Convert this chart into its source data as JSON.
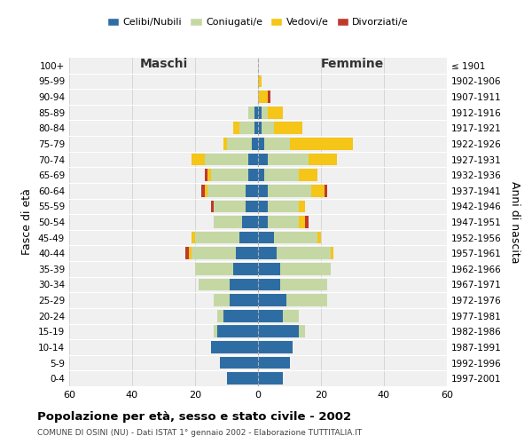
{
  "age_groups": [
    "100+",
    "95-99",
    "90-94",
    "85-89",
    "80-84",
    "75-79",
    "70-74",
    "65-69",
    "60-64",
    "55-59",
    "50-54",
    "45-49",
    "40-44",
    "35-39",
    "30-34",
    "25-29",
    "20-24",
    "15-19",
    "10-14",
    "5-9",
    "0-4"
  ],
  "birth_years": [
    "≤ 1901",
    "1902-1906",
    "1907-1911",
    "1912-1916",
    "1917-1921",
    "1922-1926",
    "1927-1931",
    "1932-1936",
    "1937-1941",
    "1942-1946",
    "1947-1951",
    "1952-1956",
    "1957-1961",
    "1962-1966",
    "1967-1971",
    "1972-1976",
    "1977-1981",
    "1982-1986",
    "1987-1991",
    "1992-1996",
    "1997-2001"
  ],
  "maschi": {
    "celibi": [
      0,
      0,
      0,
      1,
      1,
      2,
      3,
      3,
      4,
      4,
      5,
      6,
      7,
      8,
      9,
      9,
      11,
      13,
      15,
      12,
      10
    ],
    "coniugati": [
      0,
      0,
      0,
      2,
      5,
      8,
      14,
      12,
      12,
      10,
      9,
      14,
      14,
      12,
      10,
      5,
      2,
      1,
      0,
      0,
      0
    ],
    "vedovi": [
      0,
      0,
      0,
      0,
      2,
      1,
      4,
      1,
      1,
      0,
      0,
      1,
      1,
      0,
      0,
      0,
      0,
      0,
      0,
      0,
      0
    ],
    "divorziati": [
      0,
      0,
      0,
      0,
      0,
      0,
      0,
      1,
      1,
      1,
      0,
      0,
      1,
      0,
      0,
      0,
      0,
      0,
      0,
      0,
      0
    ]
  },
  "femmine": {
    "nubili": [
      0,
      0,
      0,
      1,
      1,
      2,
      3,
      2,
      3,
      3,
      3,
      5,
      6,
      7,
      7,
      9,
      8,
      13,
      11,
      10,
      8
    ],
    "coniugate": [
      0,
      0,
      0,
      2,
      4,
      8,
      13,
      11,
      14,
      10,
      10,
      14,
      17,
      16,
      15,
      13,
      5,
      2,
      0,
      0,
      0
    ],
    "vedove": [
      0,
      1,
      3,
      5,
      9,
      20,
      9,
      6,
      4,
      2,
      2,
      1,
      1,
      0,
      0,
      0,
      0,
      0,
      0,
      0,
      0
    ],
    "divorziate": [
      0,
      0,
      1,
      0,
      0,
      0,
      0,
      0,
      1,
      0,
      1,
      0,
      0,
      0,
      0,
      0,
      0,
      0,
      0,
      0,
      0
    ]
  },
  "colors": {
    "celibi_nubili": "#2e6da4",
    "coniugati_e": "#c5d8a4",
    "vedovi_e": "#f5c518",
    "divorziati_e": "#c0392b"
  },
  "xlim": 60,
  "title": "Popolazione per età, sesso e stato civile - 2002",
  "subtitle": "COMUNE DI OSINI (NU) - Dati ISTAT 1° gennaio 2002 - Elaborazione TUTTITALIA.IT",
  "ylabel_left": "Fasce di età",
  "ylabel_right": "Anni di nascita",
  "xlabel_maschi": "Maschi",
  "xlabel_femmine": "Femmine",
  "legend_labels": [
    "Celibi/Nubili",
    "Coniugati/e",
    "Vedovi/e",
    "Divorziati/e"
  ],
  "bg_color": "#f0f0f0",
  "grid_color": "#cccccc"
}
